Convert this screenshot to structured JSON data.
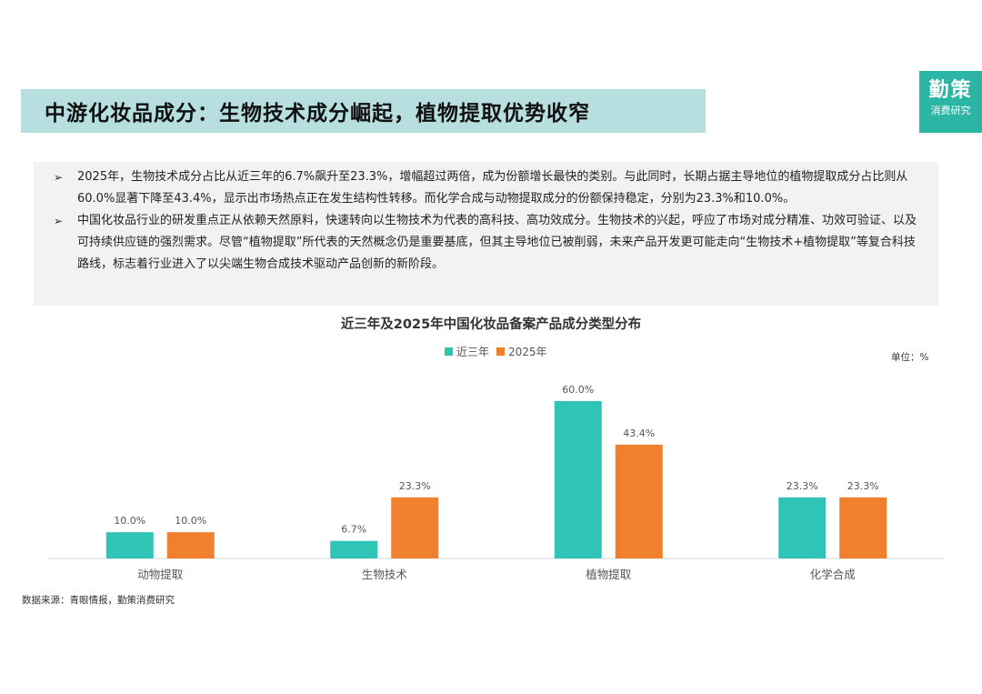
{
  "header": {
    "title": "中游化妆品成分：生物技术成分崛起，植物提取优势收窄",
    "logo_main": "勤策",
    "logo_sub": "消费研究"
  },
  "summary": {
    "bullets": [
      "2025年，生物技术成分占比从近三年的6.7%飙升至23.3%，增幅超过两倍，成为份额增长最快的类别。与此同时，长期占据主导地位的植物提取成分占比则从60.0%显著下降至43.4%，显示出市场热点正在发生结构性转移。而化学合成与动物提取成分的份额保持稳定，分别为23.3%和10.0%。",
      "中国化妆品行业的研发重点正从依赖天然原料，快速转向以生物技术为代表的高科技、高功效成分。生物技术的兴起，呼应了市场对成分精准、功效可验证、以及可持续供应链的强烈需求。尽管“植物提取”所代表的天然概念仍是重要基底，但其主导地位已被削弱，未来产品开发更可能走向“生物技术+植物提取”等复合科技路线，标志着行业进入了以尖端生物合成技术驱动产品创新的新阶段。"
    ]
  },
  "chart_data": {
    "type": "bar",
    "title": "近三年及2025年中国化妆品备案产品成分类型分布",
    "unit": "单位：%",
    "categories": [
      "动物提取",
      "生物技术",
      "植物提取",
      "化学合成"
    ],
    "series": [
      {
        "name": "近三年",
        "color": "#2ec4b6",
        "values": [
          10.0,
          6.7,
          60.0,
          23.3
        ]
      },
      {
        "name": "2025年",
        "color": "#f07f2e",
        "values": [
          10.0,
          23.3,
          43.4,
          23.3
        ]
      }
    ],
    "ylim": [
      0,
      60
    ],
    "grid": false,
    "legend": "top-center",
    "data_label_suffix": "%"
  },
  "footer": {
    "source": "数据来源：青眼情报，勤策消费研究"
  }
}
